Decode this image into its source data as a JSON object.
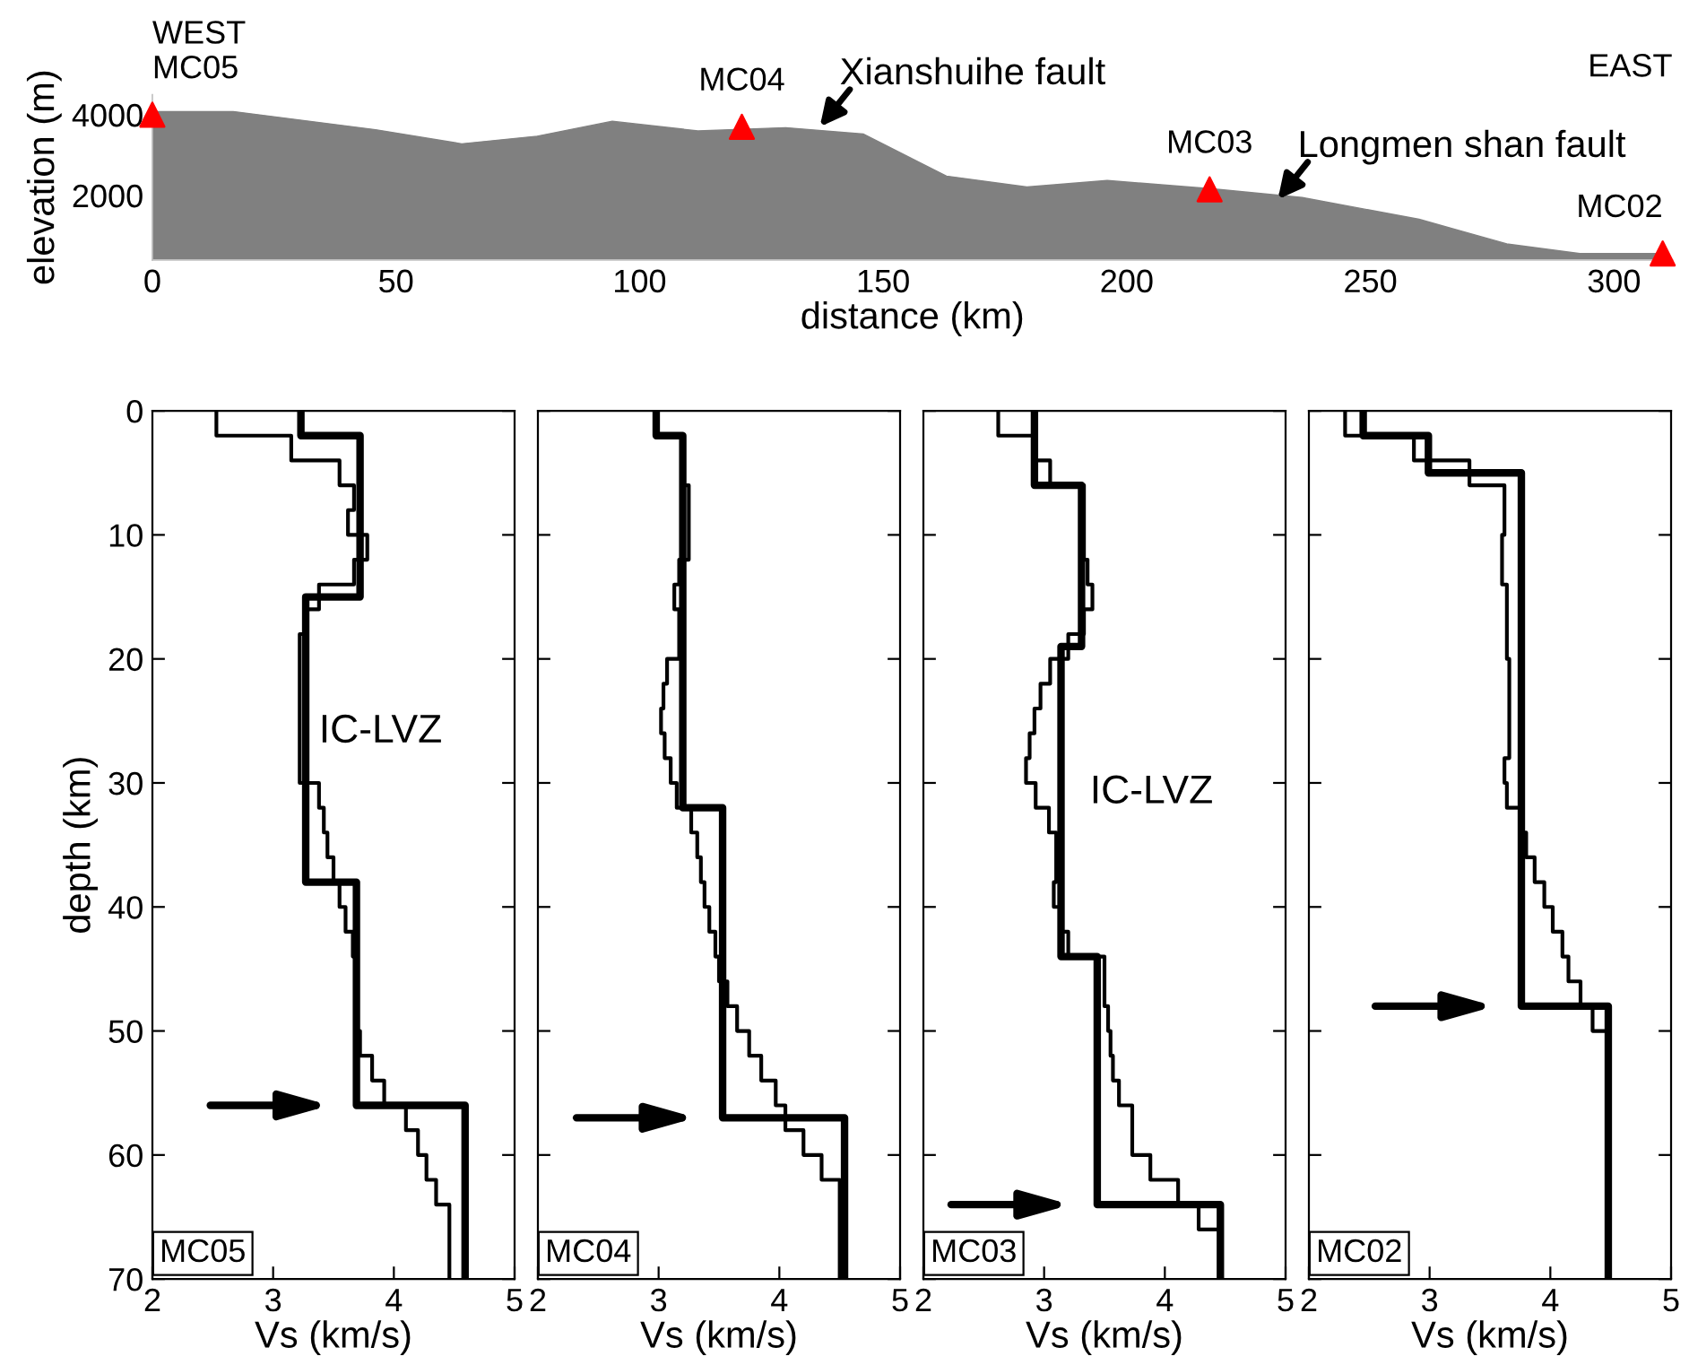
{
  "chart_data": [
    {
      "type": "area",
      "xlabel": "distance (km)",
      "ylabel": "elevation (m)",
      "xlim": [
        0,
        312
      ],
      "ylim": [
        400,
        4500
      ],
      "xticks": [
        0,
        50,
        100,
        150,
        200,
        250,
        300
      ],
      "yticks": [
        2000,
        4000
      ],
      "grid": false,
      "series": [
        {
          "type": "area",
          "color": "#808080",
          "x": [
            0,
            16.6,
            45.8,
            63.5,
            79,
            94.4,
            112,
            130,
            146,
            163,
            179.5,
            196,
            218,
            236,
            260,
            278,
            293,
            310
          ],
          "values": [
            4080,
            4080,
            3630,
            3280,
            3470,
            3840,
            3600,
            3680,
            3520,
            2480,
            2210,
            2370,
            2160,
            1950,
            1410,
            800,
            560,
            560
          ]
        },
        {
          "type": "scatter",
          "marker": "triangle",
          "color": "#ff0000",
          "x": [
            0,
            121,
            217,
            310
          ],
          "values": [
            4000,
            3700,
            2150,
            560
          ]
        }
      ],
      "annotations": [
        "WEST",
        "EAST",
        {
          "text": "MC05",
          "x": 0,
          "y": 4000
        },
        {
          "text": "MC04",
          "x": 121,
          "y": 3700
        },
        {
          "text": "MC03",
          "x": 217,
          "y": 2150
        },
        {
          "text": "MC02",
          "x": 310,
          "y": 560
        },
        {
          "text": "Xianshuihe fault",
          "x": 137,
          "y": 3700
        },
        {
          "text": "Longmen shan fault",
          "x": 231,
          "y": 1900
        }
      ]
    },
    {
      "type": "line",
      "title": "MC05",
      "xlabel": "Vs (km/s)",
      "ylabel": "depth (km)",
      "xlim": [
        2,
        5
      ],
      "ylim": [
        70,
        0
      ],
      "xticks": [
        2,
        3,
        4,
        5
      ],
      "yticks": [
        0,
        10,
        20,
        30,
        40,
        50,
        60,
        70
      ],
      "grid": false,
      "series": [
        {
          "color": "#000000",
          "x": [
            2.53,
            2.53,
            3.15,
            3.15,
            3.55,
            3.55,
            3.67,
            3.67,
            3.62,
            3.62,
            3.78,
            3.78,
            3.67,
            3.67,
            3.38,
            3.38,
            3.27,
            3.27,
            3.22,
            3.22,
            3.38,
            3.38,
            3.42,
            3.42,
            3.45,
            3.45,
            3.5,
            3.5,
            3.55,
            3.55,
            3.6,
            3.6,
            3.66,
            3.66,
            3.69,
            3.69,
            3.72,
            3.72,
            3.82,
            3.82,
            3.92,
            3.92,
            4.1,
            4.1,
            4.2,
            4.2,
            4.27,
            4.27,
            4.35,
            4.35,
            4.46,
            4.46
          ],
          "values": [
            0,
            2,
            2,
            4,
            4,
            6,
            6,
            8,
            8,
            10,
            10,
            12,
            12,
            14,
            14,
            16,
            16,
            18,
            18,
            30,
            30,
            32,
            32,
            34,
            34,
            36,
            36,
            38,
            38,
            40,
            40,
            42,
            42,
            44,
            44,
            50,
            50,
            52,
            52,
            54,
            54,
            56,
            56,
            58,
            58,
            60,
            60,
            62,
            62,
            64,
            64,
            70
          ]
        },
        {
          "color": "#000000",
          "x": [
            3.23,
            3.23,
            3.72,
            3.72,
            3.27,
            3.27,
            3.69,
            3.69,
            4.59,
            4.59
          ],
          "values": [
            0,
            2,
            2,
            15,
            15,
            38,
            38,
            56,
            56,
            70
          ]
        }
      ],
      "annotations": [
        "IC-LVZ"
      ]
    },
    {
      "type": "line",
      "title": "MC04",
      "xlabel": "Vs (km/s)",
      "xlim": [
        2,
        5
      ],
      "ylim": [
        70,
        0
      ],
      "xticks": [
        2,
        3,
        4,
        5
      ],
      "yticks": [
        0,
        10,
        20,
        30,
        40,
        50,
        60,
        70
      ],
      "grid": false,
      "tick_labels": "x",
      "series": [
        {
          "color": "#000000",
          "x": [
            2.98,
            2.98,
            3.2,
            3.2,
            3.25,
            3.25,
            3.17,
            3.17,
            3.13,
            3.13,
            3.17,
            3.17,
            3.07,
            3.07,
            3.04,
            3.04,
            3.02,
            3.02,
            3.05,
            3.05,
            3.1,
            3.1,
            3.15,
            3.15,
            3.27,
            3.27,
            3.32,
            3.32,
            3.35,
            3.35,
            3.38,
            3.38,
            3.42,
            3.42,
            3.47,
            3.47,
            3.5,
            3.5,
            3.57,
            3.57,
            3.65,
            3.65,
            3.75,
            3.75,
            3.85,
            3.85,
            3.97,
            3.97,
            4.05,
            4.05,
            4.2,
            4.2,
            4.35,
            4.35,
            4.5,
            4.5
          ],
          "values": [
            0,
            2,
            2,
            6,
            6,
            12,
            12,
            14,
            14,
            16,
            16,
            20,
            20,
            22,
            22,
            24,
            24,
            26,
            26,
            28,
            28,
            30,
            30,
            32,
            32,
            34,
            34,
            36,
            36,
            38,
            38,
            40,
            40,
            42,
            42,
            44,
            44,
            46,
            46,
            48,
            48,
            50,
            50,
            52,
            52,
            54,
            54,
            56,
            56,
            58,
            58,
            60,
            60,
            62,
            62,
            70
          ]
        },
        {
          "color": "#000000",
          "x": [
            2.98,
            2.98,
            3.2,
            3.2,
            3.53,
            3.53,
            4.54,
            4.54
          ],
          "values": [
            0,
            2,
            2,
            32,
            32,
            57,
            57,
            70
          ]
        }
      ]
    },
    {
      "type": "line",
      "title": "MC03",
      "xlabel": "Vs (km/s)",
      "xlim": [
        2,
        5
      ],
      "ylim": [
        70,
        0
      ],
      "xticks": [
        2,
        3,
        4,
        5
      ],
      "yticks": [
        0,
        10,
        20,
        30,
        40,
        50,
        60,
        70
      ],
      "grid": false,
      "tick_labels": "x",
      "series": [
        {
          "color": "#000000",
          "x": [
            2.62,
            2.62,
            2.93,
            2.93,
            3.05,
            3.05,
            3.33,
            3.33,
            3.36,
            3.36,
            3.4,
            3.4,
            3.33,
            3.33,
            3.2,
            3.2,
            3.05,
            3.05,
            2.97,
            2.97,
            2.92,
            2.92,
            2.88,
            2.88,
            2.85,
            2.85,
            2.93,
            2.93,
            3.04,
            3.04,
            3.1,
            3.1,
            3.08,
            3.08,
            3.15,
            3.15,
            3.2,
            3.2,
            3.5,
            3.5,
            3.53,
            3.53,
            3.55,
            3.55,
            3.57,
            3.57,
            3.62,
            3.62,
            3.73,
            3.73,
            3.88,
            3.88,
            4.11,
            4.11,
            4.28,
            4.28,
            4.46,
            4.46
          ],
          "values": [
            0,
            2,
            2,
            4,
            4,
            6,
            6,
            12,
            12,
            14,
            14,
            16,
            16,
            18,
            18,
            20,
            20,
            22,
            22,
            24,
            24,
            26,
            26,
            28,
            28,
            30,
            30,
            32,
            32,
            34,
            34,
            38,
            38,
            40,
            40,
            42,
            42,
            44,
            44,
            48,
            48,
            50,
            50,
            52,
            52,
            54,
            54,
            56,
            56,
            60,
            60,
            62,
            62,
            64,
            64,
            66,
            66,
            70
          ]
        },
        {
          "color": "#000000",
          "x": [
            2.92,
            2.92,
            3.31,
            3.31,
            3.14,
            3.14,
            3.44,
            3.44,
            4.46,
            4.46
          ],
          "values": [
            0,
            6,
            6,
            19,
            19,
            44,
            44,
            64,
            64,
            70
          ]
        }
      ],
      "annotations": [
        "IC-LVZ"
      ]
    },
    {
      "type": "line",
      "title": "MC02",
      "xlabel": "Vs (km/s)",
      "xlim": [
        2,
        5
      ],
      "ylim": [
        70,
        0
      ],
      "xticks": [
        2,
        3,
        4,
        5
      ],
      "yticks": [
        0,
        10,
        20,
        30,
        40,
        50,
        60,
        70
      ],
      "grid": false,
      "tick_labels": "x",
      "series": [
        {
          "color": "#000000",
          "x": [
            2.3,
            2.3,
            2.87,
            2.87,
            3.33,
            3.33,
            3.62,
            3.62,
            3.6,
            3.6,
            3.64,
            3.64,
            3.66,
            3.66,
            3.62,
            3.62,
            3.64,
            3.64,
            3.75,
            3.75,
            3.8,
            3.8,
            3.87,
            3.87,
            3.95,
            3.95,
            4.02,
            4.02,
            4.1,
            4.1,
            4.15,
            4.15,
            4.25,
            4.25,
            4.35,
            4.35,
            4.48,
            4.48
          ],
          "values": [
            0,
            2,
            2,
            4,
            4,
            6,
            6,
            10,
            10,
            14,
            14,
            20,
            20,
            28,
            28,
            30,
            30,
            32,
            32,
            34,
            34,
            36,
            36,
            38,
            38,
            40,
            40,
            42,
            42,
            44,
            44,
            46,
            46,
            48,
            48,
            50,
            50,
            70
          ]
        },
        {
          "color": "#000000",
          "x": [
            2.45,
            2.45,
            2.99,
            2.99,
            3.76,
            3.76,
            4.48,
            4.48
          ],
          "values": [
            0,
            2,
            2,
            5,
            5,
            48,
            48,
            70
          ]
        }
      ]
    }
  ]
}
